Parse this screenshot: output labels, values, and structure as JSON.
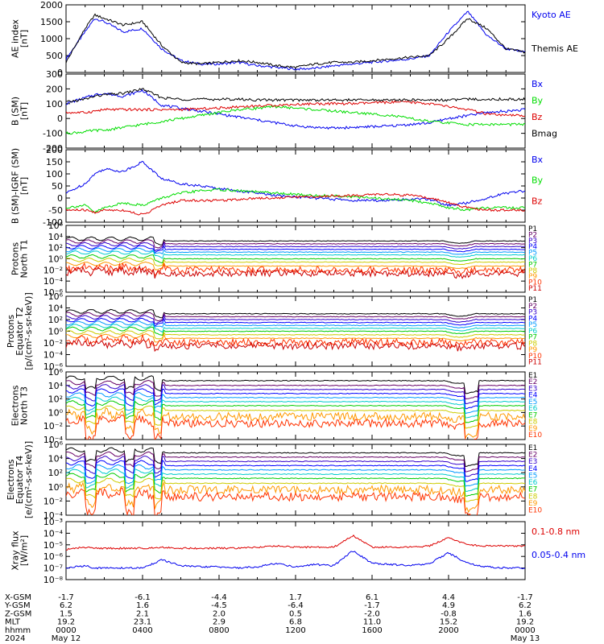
{
  "colors": {
    "black": "#000000",
    "blue": "#0000ee",
    "green": "#00dd00",
    "red": "#dd0000",
    "channel_palette": [
      "#000000",
      "#660066",
      "#3300cc",
      "#0000ff",
      "#0099ff",
      "#00cccc",
      "#00cc00",
      "#cccc00",
      "#ff9900",
      "#ff3300",
      "#cc0000"
    ]
  },
  "panels": [
    {
      "id": "ae",
      "ylabel": [
        "AE index",
        "[nT]"
      ],
      "scale": "linear",
      "ylim": [
        0,
        2000
      ],
      "ticks": [
        0,
        500,
        1000,
        1500,
        2000
      ],
      "tick_labels": [
        "0",
        "500",
        "1000",
        "1500",
        "2000"
      ],
      "legend": [
        {
          "text": "Kyoto AE",
          "color": "#0000ee"
        },
        {
          "text": "Themis AE",
          "color": "#000000"
        }
      ]
    },
    {
      "id": "bsm",
      "ylabel": [
        "B (SM)",
        "[nT]"
      ],
      "scale": "linear",
      "ylim": [
        -200,
        300
      ],
      "ticks": [
        -200,
        -100,
        0,
        100,
        200,
        300
      ],
      "tick_labels": [
        "-200",
        "-100",
        "0",
        "100",
        "200",
        "300"
      ],
      "legend": [
        {
          "text": "Bx",
          "color": "#0000ee"
        },
        {
          "text": "By",
          "color": "#00dd00"
        },
        {
          "text": "Bz",
          "color": "#dd0000"
        },
        {
          "text": "Bmag",
          "color": "#000000"
        }
      ]
    },
    {
      "id": "bigrf",
      "ylabel": [
        "B (SM)-IGRF (SM)",
        "[nT]"
      ],
      "scale": "linear",
      "ylim": [
        -100,
        200
      ],
      "ticks": [
        -100,
        -50,
        0,
        50,
        100,
        150,
        200
      ],
      "tick_labels": [
        "-100",
        "-50",
        "0",
        "50",
        "100",
        "150",
        "200"
      ],
      "legend": [
        {
          "text": "Bx",
          "color": "#0000ee"
        },
        {
          "text": "By",
          "color": "#00dd00"
        },
        {
          "text": "Bz",
          "color": "#dd0000"
        }
      ]
    },
    {
      "id": "pn",
      "ylabel": [
        "Protons",
        "North T1"
      ],
      "scale": "log",
      "ylim": [
        -6,
        6
      ],
      "ticks": [
        -6,
        -4,
        -2,
        0,
        2,
        4,
        6
      ],
      "tick_labels": [
        "10⁻⁶",
        "10⁻⁴",
        "10⁻²",
        "10⁰",
        "10²",
        "10⁴",
        "10⁶"
      ],
      "channels": [
        "P1",
        "P2",
        "P3",
        "P4",
        "P5",
        "P6",
        "P7",
        "P8",
        "P9",
        "P10",
        "P11"
      ]
    },
    {
      "id": "pe",
      "ylabel": [
        "Protons",
        "Equator T2",
        "[p/(cm²-s-sr-keV)]"
      ],
      "scale": "log",
      "ylim": [
        -6,
        6
      ],
      "ticks": [
        -6,
        -4,
        -2,
        0,
        2,
        4,
        6
      ],
      "tick_labels": [
        "10⁻⁶",
        "10⁻⁴",
        "10⁻²",
        "10⁰",
        "10²",
        "10⁴",
        "10⁶"
      ],
      "channels": [
        "P1",
        "P2",
        "P3",
        "P4",
        "P5",
        "P6",
        "P7",
        "P8",
        "P9",
        "P10",
        "P11"
      ]
    },
    {
      "id": "en",
      "ylabel": [
        "Electrons",
        "North T3"
      ],
      "scale": "log",
      "ylim": [
        -4,
        6
      ],
      "ticks": [
        -4,
        -2,
        0,
        2,
        4,
        6
      ],
      "tick_labels": [
        "10⁻⁴",
        "10⁻²",
        "10⁰",
        "10²",
        "10⁴",
        "10⁶"
      ],
      "channels": [
        "E1",
        "E2",
        "E3",
        "E4",
        "E5",
        "E6",
        "E7",
        "E8",
        "E9",
        "E10"
      ]
    },
    {
      "id": "ee",
      "ylabel": [
        "Electrons",
        "Equator T4",
        "[e/(cm²-s-sr-keV)]"
      ],
      "scale": "log",
      "ylim": [
        -4,
        6
      ],
      "ticks": [
        -4,
        -2,
        0,
        2,
        4,
        6
      ],
      "tick_labels": [
        "10⁻⁴",
        "10⁻²",
        "10⁰",
        "10²",
        "10⁴",
        "10⁶"
      ],
      "channels": [
        "E1",
        "E2",
        "E3",
        "E4",
        "E5",
        "E6",
        "E7",
        "E8",
        "E9",
        "E10"
      ]
    },
    {
      "id": "xray",
      "ylabel": [
        "Xray flux",
        "[W/m²]"
      ],
      "scale": "log",
      "ylim": [
        -8,
        -3
      ],
      "ticks": [
        -8,
        -7,
        -6,
        -5,
        -4,
        -3
      ],
      "tick_labels": [
        "10⁻⁸",
        "10⁻⁷",
        "10⁻⁶",
        "10⁻⁵",
        "10⁻⁴",
        "10⁻³"
      ],
      "legend": [
        {
          "text": "0.1-0.8 nm",
          "color": "#dd0000"
        },
        {
          "text": "0.05-0.4 nm",
          "color": "#0000ee"
        }
      ]
    }
  ],
  "xaxis": {
    "row_labels": [
      "X-GSM",
      "Y-GSM",
      "Z-GSM",
      "MLT",
      "hhmm",
      "2024"
    ],
    "columns": [
      [
        "-1.7",
        "6.2",
        "1.5",
        "19.2",
        "0000",
        "May 12"
      ],
      [
        "-6.1",
        "1.6",
        "2.1",
        "23.1",
        "0400",
        ""
      ],
      [
        "-4.4",
        "-4.5",
        "2.0",
        "2.9",
        "0800",
        ""
      ],
      [
        "1.7",
        "-6.4",
        "0.5",
        "6.8",
        "1200",
        ""
      ],
      [
        "6.1",
        "-1.7",
        "-2.0",
        "11.0",
        "1600",
        ""
      ],
      [
        "4.4",
        "4.9",
        "-0.8",
        "15.2",
        "2000",
        ""
      ],
      [
        "-1.7",
        "6.2",
        "1.6",
        "19.2",
        "0000",
        "May 13"
      ]
    ]
  },
  "chart_data": {
    "type": "line",
    "title": "",
    "x_hours": [
      0,
      1,
      1.5,
      2,
      3,
      4,
      5,
      6,
      7,
      8,
      9,
      10,
      11,
      12,
      13,
      14,
      15,
      16,
      17,
      18,
      19,
      20,
      21,
      22,
      23,
      24
    ],
    "series": [
      {
        "panel": "ae",
        "name": "Kyoto AE",
        "values": [
          400,
          1200,
          1600,
          1500,
          1200,
          1300,
          700,
          350,
          250,
          250,
          300,
          200,
          150,
          100,
          120,
          200,
          250,
          300,
          350,
          400,
          500,
          1200,
          1800,
          1100,
          700,
          600
        ]
      },
      {
        "panel": "ae",
        "name": "Themis AE",
        "values": [
          300,
          1300,
          1700,
          1600,
          1400,
          1500,
          800,
          300,
          250,
          300,
          350,
          300,
          200,
          150,
          250,
          300,
          300,
          350,
          400,
          450,
          500,
          1000,
          1600,
          1300,
          700,
          600
        ]
      },
      {
        "panel": "bsm",
        "name": "Bx",
        "values": [
          100,
          140,
          160,
          170,
          150,
          190,
          90,
          70,
          50,
          30,
          10,
          -10,
          -30,
          -50,
          -60,
          -65,
          -60,
          -55,
          -50,
          -40,
          -30,
          0,
          20,
          40,
          50,
          60
        ]
      },
      {
        "panel": "bsm",
        "name": "By",
        "values": [
          -100,
          -90,
          -80,
          -80,
          -60,
          -40,
          -20,
          0,
          20,
          40,
          60,
          70,
          80,
          70,
          60,
          50,
          40,
          30,
          20,
          0,
          -20,
          -30,
          -40,
          -40,
          -40,
          -40
        ]
      },
      {
        "panel": "bsm",
        "name": "Bz",
        "values": [
          40,
          40,
          50,
          60,
          60,
          60,
          60,
          60,
          65,
          70,
          80,
          85,
          90,
          95,
          100,
          100,
          100,
          105,
          110,
          110,
          100,
          80,
          60,
          30,
          20,
          20
        ]
      },
      {
        "panel": "bsm",
        "name": "Bmag",
        "values": [
          110,
          130,
          150,
          160,
          170,
          200,
          140,
          130,
          130,
          130,
          130,
          125,
          125,
          125,
          125,
          125,
          125,
          125,
          125,
          125,
          125,
          125,
          130,
          130,
          130,
          130
        ]
      },
      {
        "panel": "bigrf",
        "name": "Bx",
        "values": [
          20,
          60,
          100,
          120,
          110,
          150,
          80,
          60,
          50,
          40,
          30,
          20,
          10,
          5,
          0,
          -5,
          -10,
          -10,
          -10,
          -5,
          -5,
          -30,
          -20,
          0,
          20,
          30
        ]
      },
      {
        "panel": "bigrf",
        "name": "By",
        "values": [
          -40,
          -30,
          -60,
          -40,
          -20,
          -30,
          0,
          20,
          30,
          35,
          30,
          25,
          20,
          15,
          10,
          10,
          5,
          0,
          -5,
          -10,
          -20,
          -40,
          -50,
          -40,
          -40,
          -40
        ]
      },
      {
        "panel": "bigrf",
        "name": "Bz",
        "values": [
          -50,
          -50,
          -60,
          -50,
          -50,
          -70,
          -30,
          -10,
          -10,
          -10,
          -5,
          0,
          0,
          5,
          5,
          10,
          10,
          15,
          15,
          10,
          0,
          -20,
          -40,
          -50,
          -50,
          -50
        ]
      },
      {
        "panel": "xray",
        "name": "0.1-0.8 nm",
        "values": [
          -5.4,
          -5.2,
          -5.3,
          -5.3,
          -5.3,
          -5.3,
          -5.2,
          -5.3,
          -5.3,
          -5.3,
          -5.3,
          -5.2,
          -5.1,
          -5.2,
          -5.2,
          -5.2,
          -4.2,
          -5.2,
          -5.2,
          -5.2,
          -5.1,
          -4.4,
          -5.0,
          -5.1,
          -5.1,
          -5.1
        ]
      },
      {
        "panel": "xray",
        "name": "0.05-0.4 nm",
        "values": [
          -7.0,
          -6.8,
          -7.0,
          -7.0,
          -7.0,
          -7.0,
          -6.3,
          -6.8,
          -6.9,
          -6.9,
          -7.0,
          -6.9,
          -6.6,
          -6.9,
          -6.7,
          -6.8,
          -5.5,
          -6.6,
          -6.7,
          -6.8,
          -6.6,
          -5.7,
          -6.6,
          -6.9,
          -7.0,
          -7.0
        ]
      }
    ],
    "flux_levels": {
      "pn": [
        3.2,
        2.7,
        2.2,
        1.7,
        1.2,
        0.7,
        0.0,
        -0.6,
        -1.3,
        -2.0,
        -2.6
      ],
      "pe": [
        3.0,
        2.5,
        2.0,
        1.5,
        1.0,
        0.5,
        0.0,
        -0.6,
        -1.2,
        -1.9,
        -2.5
      ],
      "en": [
        4.7,
        4.0,
        3.4,
        2.8,
        2.2,
        1.6,
        1.0,
        0.3,
        -0.6,
        -1.6
      ],
      "ee": [
        4.8,
        4.2,
        3.6,
        3.0,
        2.4,
        1.8,
        1.2,
        0.5,
        -0.4,
        -1.4
      ]
    }
  }
}
